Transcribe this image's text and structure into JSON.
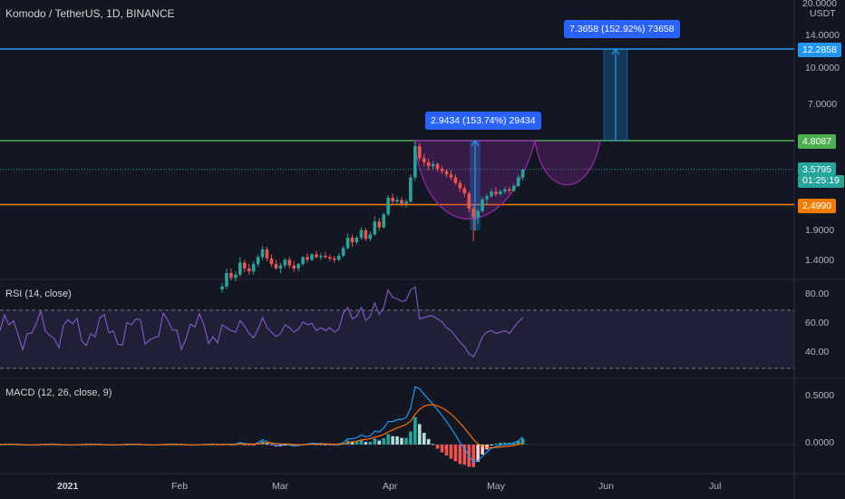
{
  "title": "Komodo / TetherUS, 1D, BINANCE",
  "price_axis": {
    "currency": "USDT",
    "labels": [
      "20.0000",
      "14.0000",
      "10.0000",
      "7.0000",
      "1.9000",
      "1.4000"
    ]
  },
  "price_tags": {
    "top_line": "12.2858",
    "green_line": "4.8087",
    "current_price": "3.5795",
    "countdown": "01:25:19",
    "orange_line": "2.4990"
  },
  "measurements": [
    {
      "text": "7.3658 (152.92%) 73658"
    },
    {
      "text": "2.9434 (153.74%) 29434"
    }
  ],
  "rsi": {
    "label": "RSI (14, close)",
    "axis": [
      "80.00",
      "60.00",
      "40.00"
    ]
  },
  "macd": {
    "label": "MACD (12, 26, close, 9)",
    "axis": [
      "0.5000",
      "0.0000"
    ]
  },
  "time_axis": [
    "2021",
    "Feb",
    "Mar",
    "Apr",
    "May",
    "Jun",
    "Jul"
  ],
  "colors": {
    "bg": "#131722",
    "up": "#26a69a",
    "down": "#ef5350",
    "blue_line": "#2196f3",
    "green_line": "#4caf50",
    "orange_line": "#f57c00",
    "rsi": "#7e57c2",
    "macd": "#2196f3",
    "signal": "#ff6d00",
    "pattern": "#9c27b0"
  },
  "chart_data": {
    "type": "candlestick",
    "candles": [
      [
        1.05,
        1.12,
        1.01,
        1.08
      ],
      [
        1.08,
        1.3,
        1.05,
        1.24
      ],
      [
        1.24,
        1.3,
        1.15,
        1.18
      ],
      [
        1.18,
        1.26,
        1.14,
        1.22
      ],
      [
        1.22,
        1.46,
        1.2,
        1.38
      ],
      [
        1.38,
        1.42,
        1.25,
        1.3
      ],
      [
        1.3,
        1.36,
        1.22,
        1.26
      ],
      [
        1.26,
        1.4,
        1.22,
        1.36
      ],
      [
        1.36,
        1.5,
        1.32,
        1.46
      ],
      [
        1.46,
        1.64,
        1.42,
        1.58
      ],
      [
        1.58,
        1.62,
        1.4,
        1.44
      ],
      [
        1.44,
        1.5,
        1.32,
        1.36
      ],
      [
        1.36,
        1.42,
        1.28,
        1.3
      ],
      [
        1.3,
        1.38,
        1.24,
        1.34
      ],
      [
        1.34,
        1.45,
        1.3,
        1.42
      ],
      [
        1.42,
        1.46,
        1.3,
        1.34
      ],
      [
        1.34,
        1.4,
        1.25,
        1.3
      ],
      [
        1.3,
        1.38,
        1.26,
        1.36
      ],
      [
        1.36,
        1.48,
        1.33,
        1.46
      ],
      [
        1.46,
        1.52,
        1.38,
        1.42
      ],
      [
        1.42,
        1.52,
        1.4,
        1.5
      ],
      [
        1.5,
        1.56,
        1.44,
        1.46
      ],
      [
        1.46,
        1.52,
        1.42,
        1.48
      ],
      [
        1.48,
        1.54,
        1.44,
        1.46
      ],
      [
        1.46,
        1.5,
        1.4,
        1.44
      ],
      [
        1.44,
        1.48,
        1.38,
        1.42
      ],
      [
        1.42,
        1.52,
        1.4,
        1.48
      ],
      [
        1.48,
        1.64,
        1.46,
        1.6
      ],
      [
        1.6,
        1.86,
        1.58,
        1.78
      ],
      [
        1.78,
        1.84,
        1.62,
        1.7
      ],
      [
        1.7,
        1.82,
        1.66,
        1.78
      ],
      [
        1.78,
        1.98,
        1.74,
        1.92
      ],
      [
        1.92,
        1.96,
        1.72,
        1.76
      ],
      [
        1.76,
        1.9,
        1.72,
        1.84
      ],
      [
        1.84,
        2.22,
        1.82,
        2.1
      ],
      [
        2.1,
        2.18,
        1.92,
        1.98
      ],
      [
        1.98,
        2.3,
        1.96,
        2.26
      ],
      [
        2.26,
        2.75,
        2.22,
        2.68
      ],
      [
        2.68,
        2.8,
        2.5,
        2.58
      ],
      [
        2.58,
        2.72,
        2.48,
        2.62
      ],
      [
        2.62,
        2.7,
        2.45,
        2.52
      ],
      [
        2.52,
        2.64,
        2.42,
        2.58
      ],
      [
        2.58,
        3.4,
        2.55,
        3.3
      ],
      [
        3.3,
        4.8,
        3.2,
        4.55
      ],
      [
        4.55,
        4.7,
        3.9,
        4.02
      ],
      [
        4.02,
        4.2,
        3.7,
        3.85
      ],
      [
        3.85,
        4.0,
        3.55,
        3.7
      ],
      [
        3.7,
        3.9,
        3.55,
        3.78
      ],
      [
        3.78,
        3.85,
        3.5,
        3.6
      ],
      [
        3.6,
        3.72,
        3.42,
        3.52
      ],
      [
        3.52,
        3.6,
        3.3,
        3.4
      ],
      [
        3.4,
        3.55,
        3.2,
        3.3
      ],
      [
        3.3,
        3.4,
        3.05,
        3.12
      ],
      [
        3.12,
        3.2,
        2.85,
        2.95
      ],
      [
        2.95,
        3.05,
        2.7,
        2.8
      ],
      [
        2.8,
        2.86,
        2.3,
        2.4
      ],
      [
        2.4,
        2.48,
        1.72,
        2.2
      ],
      [
        2.2,
        2.4,
        2.05,
        2.34
      ],
      [
        2.34,
        2.72,
        2.3,
        2.64
      ],
      [
        2.64,
        2.8,
        2.5,
        2.72
      ],
      [
        2.72,
        2.95,
        2.68,
        2.85
      ],
      [
        2.85,
        2.98,
        2.7,
        2.78
      ],
      [
        2.78,
        2.92,
        2.72,
        2.86
      ],
      [
        2.86,
        3.0,
        2.78,
        2.92
      ],
      [
        2.92,
        3.0,
        2.8,
        2.88
      ],
      [
        2.88,
        3.1,
        2.85,
        3.02
      ],
      [
        3.02,
        3.4,
        3.0,
        3.3
      ],
      [
        3.3,
        3.62,
        3.2,
        3.5795
      ]
    ],
    "lines": {
      "top": 12.2858,
      "green": 4.8087,
      "orange": 2.499,
      "current": 3.5795
    },
    "rsi_values": [
      60,
      58,
      56,
      55,
      63,
      59,
      54,
      51,
      57,
      65,
      58,
      55,
      52,
      54,
      60,
      58,
      55,
      57,
      62,
      60,
      61,
      56,
      58,
      56,
      58,
      55,
      57,
      68,
      72,
      64,
      66,
      72,
      63,
      66,
      75,
      67,
      72,
      84,
      79,
      78,
      76,
      77,
      84,
      86,
      64,
      65,
      66,
      66,
      64,
      62,
      58,
      56,
      52,
      48,
      45,
      40,
      38,
      44,
      52,
      55,
      56,
      54,
      55,
      56,
      54,
      58,
      62,
      65
    ],
    "macd": [
      0,
      0.005,
      0.003,
      0.004,
      0.02,
      0.01,
      0.005,
      0.0,
      0.02,
      0.05,
      0.03,
      0.01,
      -0.01,
      -0.01,
      0.005,
      -0.005,
      -0.015,
      -0.01,
      0.0,
      0.005,
      0.015,
      0.01,
      0.01,
      0.008,
      0.004,
      0.0,
      0.005,
      0.02,
      0.06,
      0.06,
      0.07,
      0.1,
      0.08,
      0.09,
      0.14,
      0.13,
      0.17,
      0.24,
      0.24,
      0.26,
      0.26,
      0.28,
      0.38,
      0.6,
      0.58,
      0.52,
      0.47,
      0.42,
      0.36,
      0.3,
      0.24,
      0.17,
      0.1,
      0.02,
      -0.04,
      -0.12,
      -0.18,
      -0.17,
      -0.12,
      -0.08,
      -0.04,
      -0.02,
      -0.005,
      0.0,
      0.005,
      0.015,
      0.04,
      0.08
    ],
    "signal": [
      0,
      0.001,
      0.001,
      0.002,
      0.005,
      0.006,
      0.006,
      0.005,
      0.008,
      0.016,
      0.019,
      0.017,
      0.012,
      0.008,
      0.007,
      0.005,
      0.001,
      -0.001,
      -0.001,
      0.0,
      0.003,
      0.005,
      0.006,
      0.006,
      0.006,
      0.005,
      0.005,
      0.008,
      0.018,
      0.026,
      0.035,
      0.048,
      0.054,
      0.061,
      0.077,
      0.088,
      0.104,
      0.131,
      0.153,
      0.174,
      0.191,
      0.209,
      0.243,
      0.314,
      0.367,
      0.398,
      0.412,
      0.414,
      0.403,
      0.382,
      0.354,
      0.317,
      0.274,
      0.223,
      0.17,
      0.112,
      0.054,
      0.009,
      -0.017,
      -0.03,
      -0.032,
      -0.03,
      -0.025,
      -0.02,
      -0.015,
      -0.009,
      0.001,
      0.017
    ]
  }
}
